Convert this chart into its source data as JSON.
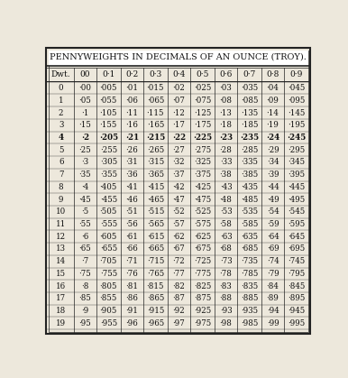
{
  "title": "PENNYWEIGHTS IN DECIMALS OF AN OUNCE (TROY).",
  "col_headers": [
    "Dwt.",
    "00",
    "0·1",
    "0·2",
    "0·3",
    "0·4",
    "0·5",
    "0·6",
    "0·7",
    "0·8",
    "0·9"
  ],
  "rows": [
    [
      "0",
      "·00",
      "·005",
      "·01",
      "·015",
      "·02",
      "·025",
      "·03",
      "·035",
      "·04",
      "·045"
    ],
    [
      "1",
      "·05",
      "·055",
      "·06",
      "·065",
      "·07",
      "·075",
      "·08",
      "·085",
      "·09",
      "·095"
    ],
    [
      "2",
      "·1",
      "·105",
      "·11",
      "·115",
      "·12",
      "·125",
      "·13",
      "·135",
      "·14",
      "·145"
    ],
    [
      "3",
      "·15",
      "·155",
      "·16",
      "·165",
      "·17",
      "·175",
      "·18",
      "·185",
      "·19",
      "·195"
    ],
    [
      "4",
      "·2",
      "·205",
      "·21",
      "·215",
      "·22",
      "·225",
      "·23",
      "·235",
      "·24",
      "·245"
    ],
    [
      "5",
      "·25",
      "·255",
      "·26",
      "·265",
      "·27",
      "·275",
      "·28",
      "·285",
      "·29",
      "·295"
    ],
    [
      "6",
      "·3",
      "·305",
      "·31",
      "·315",
      "·32",
      "·325",
      "·33",
      "·335",
      "·34",
      "·345"
    ],
    [
      "7",
      "·35",
      "·355",
      "·36",
      "·365",
      "·37",
      "·375",
      "·38",
      "·385",
      "·39",
      "·395"
    ],
    [
      "8",
      "·4",
      "·405",
      "·41",
      "·415",
      "·42",
      "·425",
      "·43",
      "·435",
      "·44",
      "·445"
    ],
    [
      "9",
      "·45",
      "·455",
      "·46",
      "·465",
      "·47",
      "·475",
      "·48",
      "·485",
      "·49",
      "·495"
    ],
    [
      "10",
      "·5",
      "·505",
      "·51",
      "·515",
      "·52",
      "·525",
      "·53",
      "·535",
      "·54",
      "·545"
    ],
    [
      "11",
      "·55",
      "·555",
      "·56",
      "·565",
      "·57",
      "·575",
      "·58",
      "·585",
      "·59",
      "·595"
    ],
    [
      "12",
      "·6",
      "·605",
      "·61",
      "·615",
      "·62",
      "·625",
      "·63",
      "·635",
      "·64",
      "·645"
    ],
    [
      "13",
      "·65",
      "·655",
      "·66",
      "·665",
      "·67",
      "·675",
      "·68",
      "·685",
      "·69",
      "·695"
    ],
    [
      "14",
      "·7",
      "·705",
      "·71",
      "·715",
      "·72",
      "·725",
      "·73",
      "·735",
      "·74",
      "·745"
    ],
    [
      "15",
      "·75",
      "·755",
      "·76",
      "·765",
      "·77",
      "·775",
      "·78",
      "·785",
      "·79",
      "·795"
    ],
    [
      "16",
      "·8",
      "·805",
      "·81",
      "·815",
      "·82",
      "·825",
      "·83",
      "·835",
      "·84",
      "·845"
    ],
    [
      "17",
      "·85",
      "·855",
      "·86",
      "·865",
      "·87",
      "·875",
      "·88",
      "·885",
      "·89",
      "·895"
    ],
    [
      "18",
      "·9",
      "·905",
      "·91",
      "·915",
      "·92",
      "·925",
      "·93",
      "·935",
      "·94",
      "·945"
    ],
    [
      "19",
      "·95",
      "·955",
      "·96",
      "·965",
      "·97",
      "·975",
      "·98",
      "·985",
      "·99",
      "·995"
    ]
  ],
  "bold_rows": [
    4
  ],
  "bg_color": "#ede8dc",
  "border_color": "#222222",
  "text_color": "#111111",
  "title_fontsize": 7.0,
  "header_fontsize": 6.5,
  "cell_fontsize": 6.2
}
